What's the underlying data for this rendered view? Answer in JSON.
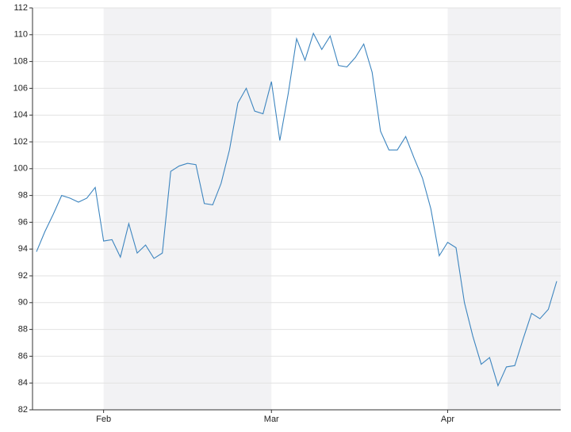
{
  "chart_data": {
    "type": "line",
    "categories": [
      null,
      null,
      null,
      null,
      null,
      null,
      null,
      null,
      "Feb",
      null,
      null,
      null,
      null,
      null,
      null,
      null,
      null,
      null,
      null,
      null,
      null,
      null,
      null,
      null,
      null,
      null,
      null,
      null,
      "Mar",
      null,
      null,
      null,
      null,
      null,
      null,
      null,
      null,
      null,
      null,
      null,
      null,
      null,
      null,
      null,
      null,
      null,
      null,
      null,
      null,
      "Apr",
      null,
      null,
      null,
      null,
      null,
      null,
      null,
      null,
      null,
      null,
      null,
      null,
      null
    ],
    "series": [
      {
        "color": "#3d85bf",
        "values": [
          93.8,
          95.3,
          96.6,
          98.0,
          97.8,
          97.5,
          97.8,
          98.6,
          94.6,
          94.7,
          93.4,
          95.9,
          93.7,
          94.3,
          93.3,
          93.7,
          99.8,
          100.2,
          100.4,
          100.3,
          97.4,
          97.3,
          98.9,
          101.4,
          104.9,
          106.0,
          104.3,
          104.1,
          106.5,
          102.1,
          105.6,
          109.7,
          108.1,
          110.1,
          108.9,
          109.9,
          107.7,
          107.6,
          108.3,
          109.3,
          107.2,
          102.8,
          101.4,
          101.4,
          102.4,
          100.8,
          99.3,
          97.0,
          93.5,
          94.5,
          94.1,
          90.0,
          87.5,
          85.4,
          85.9,
          83.8,
          85.2,
          85.3,
          87.3,
          89.2,
          88.8,
          89.5,
          91.6
        ]
      }
    ],
    "ylim": [
      82,
      112
    ],
    "yticks": [
      82,
      84,
      86,
      88,
      90,
      92,
      94,
      96,
      98,
      100,
      102,
      104,
      106,
      108,
      110,
      112
    ],
    "grid": true
  }
}
